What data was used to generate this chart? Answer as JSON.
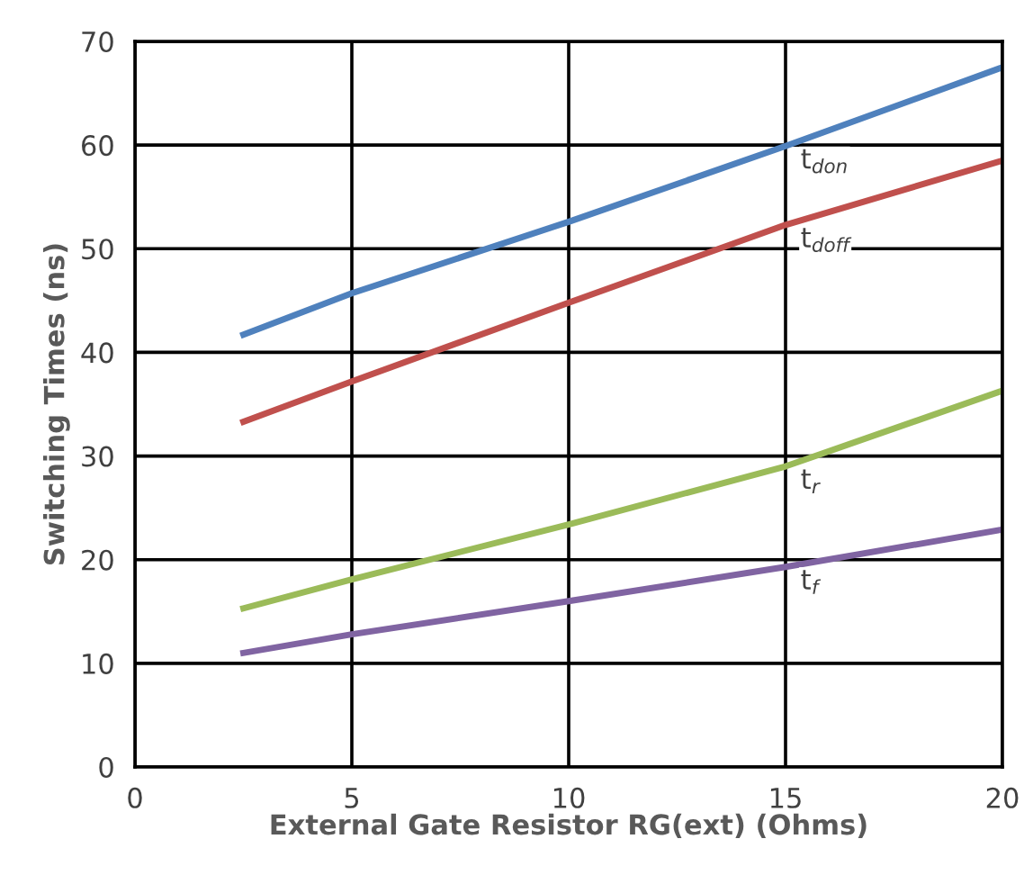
{
  "chart_data": {
    "type": "line",
    "xlabel": "External Gate Resistor RG(ext) (Ohms)",
    "ylabel": "Switching Times (ns)",
    "x": [
      2.5,
      5,
      10,
      15,
      20
    ],
    "series": [
      {
        "name": "t$_{don}$",
        "color": "#4f81bd",
        "values": [
          41.7,
          45.7,
          52.6,
          59.9,
          67.5
        ]
      },
      {
        "name": "t$_{doff}$",
        "color": "#c0504d",
        "values": [
          33.3,
          37.2,
          44.8,
          52.3,
          58.5
        ]
      },
      {
        "name": "t$_{r}$",
        "color": "#9bbb59",
        "values": [
          15.3,
          18.1,
          23.4,
          29.0,
          36.3
        ]
      },
      {
        "name": "t$_{f}$",
        "color": "#8064a2",
        "values": [
          11.0,
          12.8,
          16.0,
          19.3,
          22.9
        ]
      }
    ],
    "xlim": [
      0,
      20
    ],
    "xticks": [
      0,
      5,
      10,
      15,
      20
    ],
    "ylim": [
      0,
      70
    ],
    "yticks": [
      0,
      10,
      20,
      30,
      40,
      50,
      60,
      70
    ],
    "grid": true,
    "legend": false,
    "marker": "none",
    "line_style": "solid"
  }
}
